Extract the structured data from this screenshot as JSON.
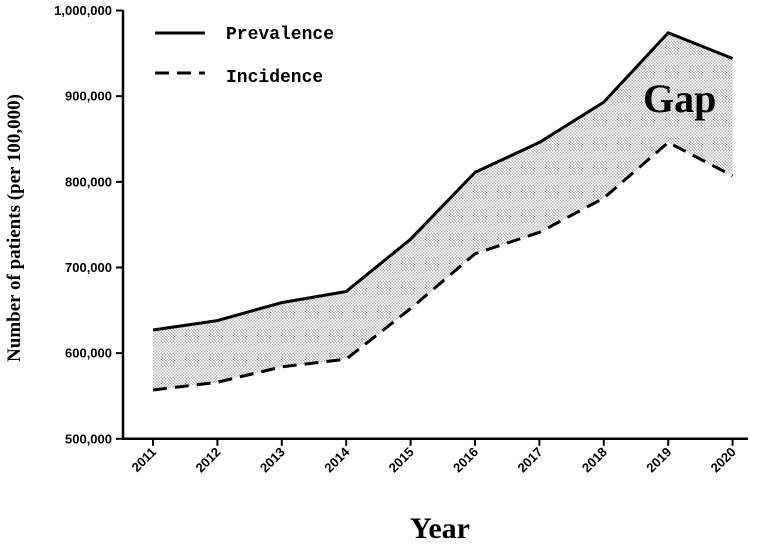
{
  "chart_data": {
    "type": "area",
    "categories": [
      "2011",
      "2012",
      "2013",
      "2014",
      "2015",
      "2016",
      "2017",
      "2018",
      "2019",
      "2020"
    ],
    "series": [
      {
        "name": "Prevalence",
        "style": "solid",
        "values": [
          627000,
          638000,
          659000,
          672000,
          733000,
          811000,
          846000,
          893000,
          974000,
          944000
        ]
      },
      {
        "name": "Incidence",
        "style": "dashed",
        "values": [
          557000,
          566000,
          584000,
          593000,
          652000,
          716000,
          741000,
          781000,
          846000,
          807000
        ]
      }
    ],
    "fill_between": {
      "upper": "Prevalence",
      "lower": "Incidence",
      "pattern": "dotted-gray"
    },
    "annotation": "Gap",
    "xlabel": "Year",
    "ylabel": "Number of patients (per 100,000)",
    "yticks": [
      "500,000",
      "600,000",
      "700,000",
      "800,000",
      "900,000",
      "1,000,000"
    ],
    "ylim": [
      500000,
      1000000
    ],
    "legend_position": "top-left",
    "grid": false,
    "colors": {
      "line": "#000000",
      "fill": "#b8b8b8"
    }
  }
}
